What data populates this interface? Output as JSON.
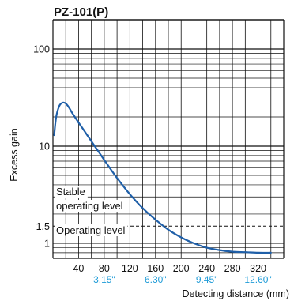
{
  "chart_data": {
    "type": "line",
    "title": "PZ-101(P)",
    "xlabel": "Detecting distance (mm)",
    "ylabel": "Excess gain",
    "xlim": [
      0,
      360
    ],
    "ylim": [
      0.7,
      200
    ],
    "y_scale": "log",
    "grid": true,
    "x_ticks": [
      "40",
      "80",
      "120",
      "160",
      "200",
      "240",
      "280",
      "320"
    ],
    "x_tick_values": [
      40,
      80,
      120,
      160,
      200,
      240,
      280,
      320
    ],
    "inch_ticks": [
      {
        "x": 80,
        "label": "3.15\""
      },
      {
        "x": 160,
        "label": "6.30\""
      },
      {
        "x": 240,
        "label": "9.45\""
      },
      {
        "x": 320,
        "label": "12.60\""
      }
    ],
    "y_ticks": [
      {
        "value": 100,
        "label": "100"
      },
      {
        "value": 10,
        "label": "10"
      },
      {
        "value": 1.5,
        "label": "1.5"
      },
      {
        "value": 1,
        "label": "1"
      }
    ],
    "reference_line": {
      "y": 1.5,
      "style": "dashed"
    },
    "annotations": [
      "Stable",
      "operating level",
      "Operating level"
    ],
    "series": [
      {
        "color": "#1f5fa8",
        "x": [
          2,
          5,
          10,
          15,
          20,
          25,
          30,
          40,
          50,
          60,
          70,
          80,
          90,
          100,
          120,
          140,
          160,
          180,
          200,
          220,
          240,
          260,
          280,
          300,
          320,
          340
        ],
        "y": [
          13,
          20,
          26,
          28,
          27.5,
          25,
          22,
          17.5,
          14,
          11.2,
          9,
          7.2,
          5.8,
          4.7,
          3.2,
          2.3,
          1.75,
          1.38,
          1.15,
          1.0,
          0.9,
          0.85,
          0.82,
          0.81,
          0.8,
          0.8
        ]
      }
    ],
    "colors": {
      "curve": "#1f5fa8",
      "inch_label": "#1e9bd7",
      "grid": "#111111"
    }
  }
}
